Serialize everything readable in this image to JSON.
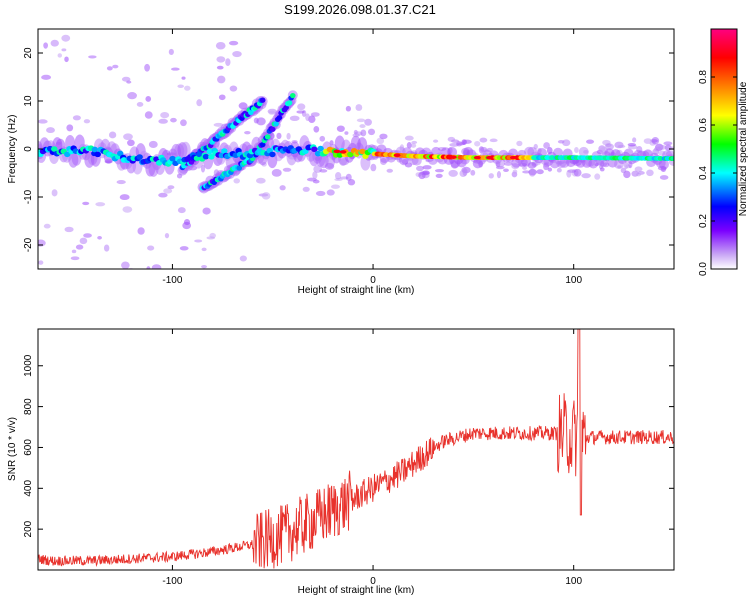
{
  "title": "S199.2026.098.01.37.C21",
  "chart_data": [
    {
      "type": "heatmap",
      "name": "spectrogram",
      "xlabel": "Height of straight line (km)",
      "ylabel": "Frequency (Hz)",
      "xlim": [
        -167,
        150
      ],
      "ylim": [
        -25,
        25
      ],
      "xticks": [
        -100,
        0,
        100
      ],
      "yticks": [
        -20,
        -10,
        0,
        10,
        20
      ],
      "colorbar": {
        "label": "Normalized spectral amplitude",
        "range": [
          0.0,
          1.0
        ],
        "ticks": [
          "0.0",
          "0.2",
          "0.4",
          "0.6",
          "0.8"
        ],
        "colors": [
          "#ffffff",
          "#c9a7f5",
          "#7b00ff",
          "#0000ff",
          "#00ffff",
          "#00ff00",
          "#ffff00",
          "#ff8000",
          "#ff0000",
          "#ff0080"
        ]
      },
      "ridge": {
        "description_points_x": [
          -167,
          -140,
          -120,
          -100,
          -80,
          -60,
          -40,
          -20,
          0,
          20,
          50,
          80,
          100,
          150
        ],
        "description_points_freq": [
          -0.5,
          -0.5,
          -2,
          -2.5,
          -1,
          -1,
          0,
          -0.5,
          -1,
          -1.5,
          -1.8,
          -1.8,
          -1.8,
          -2
        ]
      },
      "branch_rising": {
        "x": [
          -85,
          -60,
          -40
        ],
        "freq": [
          -8,
          -2,
          11
        ]
      },
      "branch_upper": {
        "x": [
          -95,
          -70,
          -55
        ],
        "freq": [
          -4,
          5,
          10
        ]
      }
    },
    {
      "type": "line",
      "name": "snr",
      "xlabel": "Height of straight line (km)",
      "ylabel": "SNR (10 * v/v)",
      "xlim": [
        -167,
        150
      ],
      "ylim": [
        0,
        1180
      ],
      "xticks": [
        -100,
        0,
        100
      ],
      "yticks": [
        200,
        400,
        600,
        800,
        1000
      ],
      "color": "#e8312b",
      "trend_x": [
        -167,
        -160,
        -140,
        -120,
        -100,
        -80,
        -60,
        -45,
        -30,
        -15,
        0,
        15,
        25,
        35,
        50,
        80,
        95,
        100,
        103,
        110,
        150
      ],
      "trend_y": [
        55,
        45,
        45,
        55,
        65,
        90,
        125,
        170,
        240,
        320,
        400,
        480,
        560,
        630,
        670,
        670,
        670,
        650,
        650,
        650,
        650
      ]
    }
  ]
}
